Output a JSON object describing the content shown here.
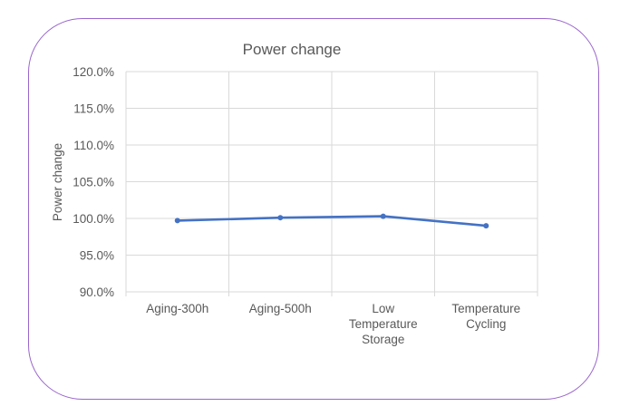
{
  "chart_data": {
    "type": "line",
    "title": "Power change",
    "xlabel": "",
    "ylabel": "Power change",
    "categories": [
      [
        "Aging-300h"
      ],
      [
        "Aging-500h"
      ],
      [
        "Low",
        "Temperature",
        "Storage"
      ],
      [
        "Temperature",
        "Cycling"
      ]
    ],
    "series": [
      {
        "values": [
          99.7,
          100.1,
          100.3,
          99.0
        ],
        "color": "#4472c4"
      }
    ],
    "ylim": [
      90,
      120
    ],
    "yticks": [
      90,
      95,
      100,
      105,
      110,
      115,
      120
    ],
    "ytick_labels": [
      "90.0%",
      "95.0%",
      "100.0%",
      "105.0%",
      "110.0%",
      "115.0%",
      "120.0%"
    ],
    "grid": true,
    "legend": "none",
    "colors": {
      "frame_border": "#9966cc",
      "grid": "#d9d9d9",
      "text": "#595959"
    }
  }
}
